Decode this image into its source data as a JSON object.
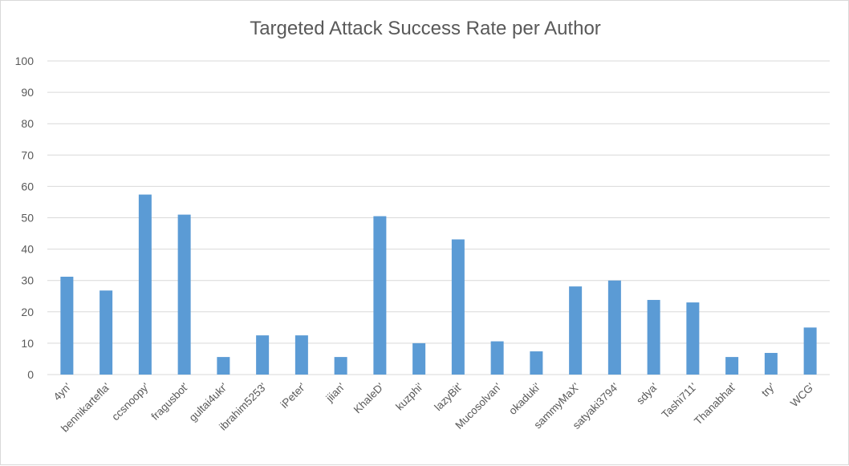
{
  "chart_data": {
    "type": "bar",
    "title": "Targeted Attack Success Rate per Author",
    "xlabel": "",
    "ylabel": "",
    "ylim": [
      0,
      100
    ],
    "yticks": [
      0,
      10,
      20,
      30,
      40,
      50,
      60,
      70,
      80,
      90,
      100
    ],
    "grid": true,
    "legend": "none",
    "bar_color": "#5b9bd5",
    "categories": [
      "4yn'",
      "bennikartefla'",
      "ccsnoopy'",
      "fragusbot'",
      "gultai4ukr'",
      "ibrahim5253'",
      "iPeter'",
      "jiian'",
      "KhaleD'",
      "kuzphi'",
      "lazyBit'",
      "Mucosolvan'",
      "okaduki'",
      "sammyMaX'",
      "satyaki3794'",
      "sdya'",
      "Tashi711'",
      "Thanabhat'",
      "try'",
      "WCG'"
    ],
    "values": [
      31.2,
      26.8,
      57.4,
      51.0,
      5.6,
      12.5,
      12.5,
      5.6,
      50.5,
      10.0,
      43.1,
      10.6,
      7.4,
      28.1,
      30.0,
      23.8,
      23.0,
      5.6,
      6.9,
      15.0
    ]
  }
}
